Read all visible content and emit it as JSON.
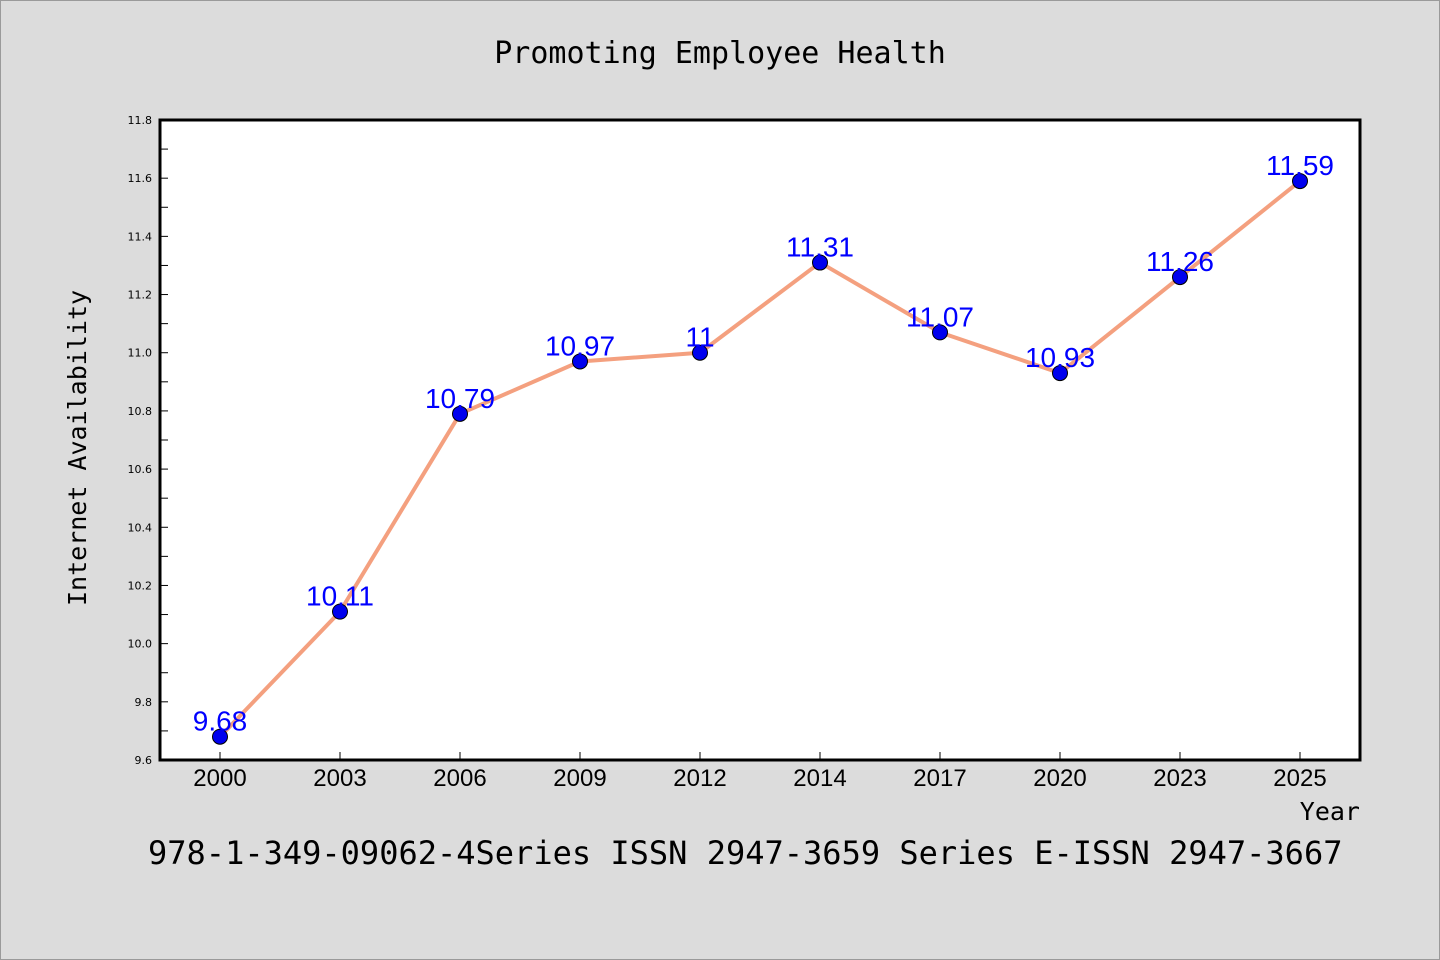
{
  "chart_data": {
    "type": "line",
    "title": "Promoting Employee Health",
    "xlabel": "Year",
    "ylabel": "Internet Availability",
    "categories": [
      "2000",
      "2003",
      "2006",
      "2009",
      "2012",
      "2014",
      "2017",
      "2020",
      "2023",
      "2025"
    ],
    "series": [
      {
        "values": [
          9.68,
          10.11,
          10.79,
          10.97,
          11.0,
          11.31,
          11.07,
          10.93,
          11.26,
          11.59
        ],
        "labels": [
          "9.68",
          "10.11",
          "10.79",
          "10.97",
          "11",
          "11.31",
          "11.07",
          "10.93",
          "11.26",
          "11.59"
        ],
        "line_color": "#f4a07f",
        "marker_color": "#0000ee",
        "label_color": "#0000ff"
      }
    ],
    "ylim": [
      9.6,
      11.8
    ],
    "yticks": [
      "9.6",
      "9.8",
      "10.0",
      "10.2",
      "10.4",
      "10.6",
      "10.8",
      "11.0",
      "11.2",
      "11.4",
      "11.6",
      "11.8"
    ],
    "grid": false,
    "legend": "none"
  },
  "footer": {
    "text": "978-1-349-09062-4Series ISSN 2947-3659 Series E-ISSN 2947-3667"
  },
  "colors": {
    "background": "#dcdcdc",
    "plot_background": "#ffffff"
  }
}
